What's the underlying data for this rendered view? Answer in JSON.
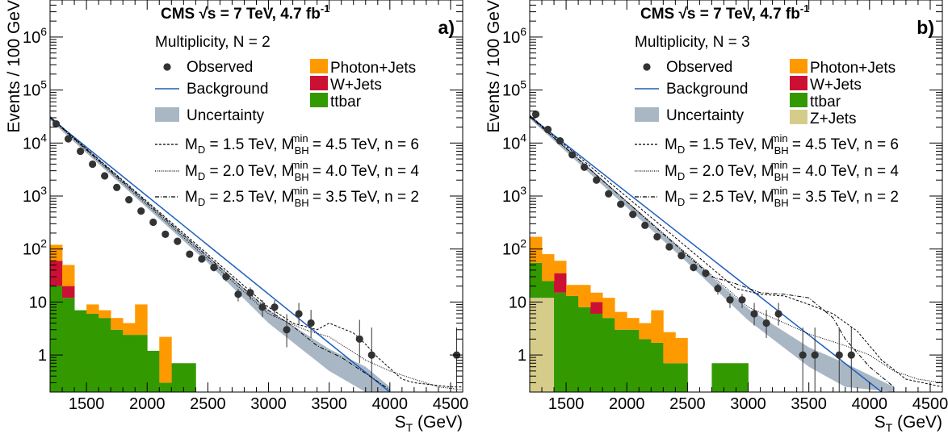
{
  "chart_data": [
    {
      "type": "bar",
      "panel_label": "a)",
      "experiment": "CMS",
      "energy_text": "√s = 7 TeV, 4.7 fb",
      "energy_sup": "-1",
      "multiplicity_text": "Multiplicity, N = 2",
      "ylabel": "Events / 100 GeV",
      "xlabel": "S",
      "xlabel_sub": "T",
      "xlabel_unit": " (GeV)",
      "yscale": "log",
      "xlim": [
        1200,
        4600
      ],
      "ylim": [
        0.2,
        5000000
      ],
      "xticks": [
        1500,
        2000,
        2500,
        3000,
        3500,
        4000,
        4500
      ],
      "yticks": [
        {
          "v": 1,
          "base": "1",
          "exp": ""
        },
        {
          "v": 10,
          "base": "10",
          "exp": ""
        },
        {
          "v": 100,
          "base": "10",
          "exp": "2"
        },
        {
          "v": 1000,
          "base": "10",
          "exp": "3"
        },
        {
          "v": 10000,
          "base": "10",
          "exp": "4"
        },
        {
          "v": 100000,
          "base": "10",
          "exp": "5"
        },
        {
          "v": 1000000,
          "base": "10",
          "exp": "6"
        }
      ],
      "legend": {
        "left": [
          {
            "kind": "marker",
            "label": "Observed"
          },
          {
            "kind": "line",
            "label": "Background"
          },
          {
            "kind": "band",
            "label": "Uncertainty"
          }
        ],
        "right": [
          {
            "color": "#ff9900",
            "label": "Photon+Jets"
          },
          {
            "color": "#cc1033",
            "label": "W+Jets"
          },
          {
            "color": "#339900",
            "label": "ttbar"
          }
        ],
        "signals": [
          {
            "dash": "3,2",
            "md": "1.5",
            "mbh": "4.5",
            "n": "6"
          },
          {
            "dash": "1,1.4",
            "md": "2.0",
            "mbh": "4.0",
            "n": "4"
          },
          {
            "dash": "5,2,1,2",
            "md": "2.5",
            "mbh": "3.5",
            "n": "2"
          }
        ],
        "md_label": "M",
        "md_sub": "D",
        "mbh_label": "M",
        "mbh_sub": "BH",
        "mbh_sup": "min",
        "unit": "TeV",
        "n_label": "n"
      },
      "stack": {
        "bin_width": 100,
        "bin_start": 1200,
        "series": [
          {
            "name": "ttbar",
            "color": "#339900",
            "values": [
              20,
              12,
              7,
              6,
              5,
              3,
              2.4,
              2.4,
              1.2,
              0.3,
              0.7,
              0.7
            ]
          },
          {
            "name": "W+Jets",
            "color": "#cc1033",
            "values": [
              40,
              8,
              0,
              0,
              0,
              0,
              0,
              0,
              0,
              0,
              0,
              0
            ]
          },
          {
            "name": "Photon+Jets",
            "color": "#ff9900",
            "values": [
              60,
              30,
              0,
              3,
              2,
              2,
              1.6,
              6.6,
              0,
              1.9,
              0,
              0
            ]
          }
        ]
      },
      "background": {
        "x": [
          1200,
          4000
        ],
        "y": [
          30000,
          0.2
        ]
      },
      "uncertainty_band": [
        {
          "x": 1200,
          "lo": 27000,
          "hi": 33000
        },
        {
          "x": 2500,
          "lo": 55,
          "hi": 75
        },
        {
          "x": 3000,
          "lo": 4,
          "hi": 7
        },
        {
          "x": 3500,
          "lo": 0.5,
          "hi": 1.3
        },
        {
          "x": 3800,
          "lo": 0.2,
          "hi": 0.6
        },
        {
          "x": 4000,
          "lo": 0.2,
          "hi": 0.25
        }
      ],
      "signals_data": [
        {
          "x": [
            1200,
            3000,
            3200,
            3400,
            3500,
            3700,
            3800,
            3900,
            4100,
            4200,
            4500,
            4600
          ],
          "y": [
            31000,
            8,
            4,
            3,
            4,
            2.6,
            1.6,
            0.9,
            0.35,
            0.3,
            0.25,
            0.25
          ]
        },
        {
          "x": [
            1200,
            3000,
            3300,
            3500,
            3800,
            4000,
            4200,
            4400,
            4600
          ],
          "y": [
            30000,
            6,
            3,
            2.2,
            0.8,
            0.5,
            0.35,
            0.25,
            0.22
          ]
        },
        {
          "x": [
            1200,
            3000,
            3200,
            3400,
            3600,
            3800,
            4000
          ],
          "y": [
            30500,
            7,
            3.5,
            1.5,
            0.9,
            0.45,
            0.22
          ]
        }
      ],
      "observed": [
        {
          "x": 1250,
          "y": 23000,
          "elo": 150,
          "ehi": 150
        },
        {
          "x": 1350,
          "y": 12000,
          "elo": 110,
          "ehi": 110
        },
        {
          "x": 1450,
          "y": 7000,
          "elo": 85,
          "ehi": 85
        },
        {
          "x": 1550,
          "y": 4000,
          "elo": 65,
          "ehi": 65
        },
        {
          "x": 1650,
          "y": 2400,
          "elo": 50,
          "ehi": 50
        },
        {
          "x": 1750,
          "y": 1450,
          "elo": 40,
          "ehi": 40
        },
        {
          "x": 1850,
          "y": 850,
          "elo": 30,
          "ehi": 30
        },
        {
          "x": 1950,
          "y": 520,
          "elo": 23,
          "ehi": 23
        },
        {
          "x": 2050,
          "y": 320,
          "elo": 18,
          "ehi": 18
        },
        {
          "x": 2150,
          "y": 190,
          "elo": 14,
          "ehi": 14
        },
        {
          "x": 2250,
          "y": 140,
          "elo": 12,
          "ehi": 12
        },
        {
          "x": 2350,
          "y": 80,
          "elo": 9,
          "ehi": 9
        },
        {
          "x": 2450,
          "y": 65,
          "elo": 8,
          "ehi": 8
        },
        {
          "x": 2550,
          "y": 45,
          "elo": 7,
          "ehi": 7
        },
        {
          "x": 2650,
          "y": 30,
          "elo": 5.5,
          "ehi": 5.5
        },
        {
          "x": 2750,
          "y": 14,
          "elo": 3.7,
          "ehi": 3.7
        },
        {
          "x": 2850,
          "y": 15,
          "elo": 3.9,
          "ehi": 3.9
        },
        {
          "x": 2950,
          "y": 8,
          "elo": 2.8,
          "ehi": 2.8
        },
        {
          "x": 3050,
          "y": 8,
          "elo": 2.8,
          "ehi": 2.8
        },
        {
          "x": 3150,
          "y": 3,
          "elo": 1.6,
          "ehi": 2.9
        },
        {
          "x": 3250,
          "y": 6,
          "elo": 2.4,
          "ehi": 3.6
        },
        {
          "x": 3350,
          "y": 4,
          "elo": 1.9,
          "ehi": 3.1
        },
        {
          "x": 3750,
          "y": 2,
          "elo": 1.3,
          "ehi": 2.6
        },
        {
          "x": 3850,
          "y": 1,
          "elo": 0.8,
          "ehi": 2.3
        },
        {
          "x": 4550,
          "y": 1,
          "elo": 0.8,
          "ehi": 2.3
        }
      ]
    },
    {
      "type": "bar",
      "panel_label": "b)",
      "experiment": "CMS",
      "energy_text": "√s = 7 TeV, 4.7 fb",
      "energy_sup": "-1",
      "multiplicity_text": "Multiplicity, N = 3",
      "ylabel": "Events / 100 GeV",
      "xlabel": "S",
      "xlabel_sub": "T",
      "xlabel_unit": " (GeV)",
      "yscale": "log",
      "xlim": [
        1200,
        4600
      ],
      "ylim": [
        0.2,
        5000000
      ],
      "xticks": [
        1500,
        2000,
        2500,
        3000,
        3500,
        4000,
        4500
      ],
      "yticks": [
        {
          "v": 1,
          "base": "1",
          "exp": ""
        },
        {
          "v": 10,
          "base": "10",
          "exp": ""
        },
        {
          "v": 100,
          "base": "10",
          "exp": "2"
        },
        {
          "v": 1000,
          "base": "10",
          "exp": "3"
        },
        {
          "v": 10000,
          "base": "10",
          "exp": "4"
        },
        {
          "v": 100000,
          "base": "10",
          "exp": "5"
        },
        {
          "v": 1000000,
          "base": "10",
          "exp": "6"
        }
      ],
      "legend": {
        "left": [
          {
            "kind": "marker",
            "label": "Observed"
          },
          {
            "kind": "line",
            "label": "Background"
          },
          {
            "kind": "band",
            "label": "Uncertainty"
          }
        ],
        "right": [
          {
            "color": "#ff9900",
            "label": "Photon+Jets"
          },
          {
            "color": "#cc1033",
            "label": "W+Jets"
          },
          {
            "color": "#339900",
            "label": "ttbar"
          },
          {
            "color": "#d6cc8a",
            "label": "Z+Jets"
          }
        ],
        "signals": [
          {
            "dash": "3,2",
            "md": "1.5",
            "mbh": "4.5",
            "n": "6"
          },
          {
            "dash": "1,1.4",
            "md": "2.0",
            "mbh": "4.0",
            "n": "4"
          },
          {
            "dash": "5,2,1,2",
            "md": "2.5",
            "mbh": "3.5",
            "n": "2"
          }
        ],
        "md_label": "M",
        "md_sub": "D",
        "mbh_label": "M",
        "mbh_sub": "BH",
        "mbh_sup": "min",
        "unit": "TeV",
        "n_label": "n"
      },
      "stack": {
        "bin_width": 100,
        "bin_start": 1200,
        "series": [
          {
            "name": "Z+Jets",
            "color": "#d6cc8a",
            "values": [
              12,
              12,
              0,
              0,
              0,
              0,
              0,
              0,
              0,
              0,
              0,
              0,
              0,
              0,
              0,
              0,
              0,
              0
            ]
          },
          {
            "name": "ttbar",
            "color": "#339900",
            "values": [
              43,
              13,
              15,
              13,
              8,
              6,
              5,
              3,
              3,
              2,
              1.7,
              0.7,
              0.7,
              0,
              0,
              0.7,
              0.7,
              0.7
            ]
          },
          {
            "name": "W+Jets",
            "color": "#cc1033",
            "values": [
              0,
              0,
              20,
              0,
              0,
              4,
              0,
              0,
              0,
              0,
              0,
              0,
              0,
              0,
              0,
              0,
              0,
              0
            ]
          },
          {
            "name": "Photon+Jets",
            "color": "#ff9900",
            "values": [
              115,
              55,
              25,
              8,
              13,
              5,
              7,
              3.5,
              2,
              2,
              5.3,
              2,
              1.4,
              0,
              0,
              0,
              0,
              0
            ]
          }
        ]
      },
      "background": {
        "x": [
          1200,
          4100
        ],
        "y": [
          32000,
          0.2
        ]
      },
      "uncertainty_band": [
        {
          "x": 1200,
          "lo": 29000,
          "hi": 35000
        },
        {
          "x": 2500,
          "lo": 55,
          "hi": 75
        },
        {
          "x": 3000,
          "lo": 4.5,
          "hi": 7.5
        },
        {
          "x": 3500,
          "lo": 0.6,
          "hi": 1.4
        },
        {
          "x": 3800,
          "lo": 0.25,
          "hi": 0.7
        },
        {
          "x": 4200,
          "lo": 0.2,
          "hi": 0.25
        }
      ],
      "signals_data": [
        {
          "x": [
            1200,
            2900,
            3100,
            3300,
            3500,
            3700,
            3900,
            4100,
            4300,
            4500,
            4600
          ],
          "y": [
            33000,
            18,
            14,
            13,
            9,
            6,
            2.8,
            0.8,
            0.35,
            0.28,
            0.25
          ]
        },
        {
          "x": [
            1200,
            3000,
            3300,
            3500,
            3800,
            4000,
            4200,
            4400,
            4600
          ],
          "y": [
            31000,
            8,
            4,
            2.5,
            1.5,
            1.0,
            0.5,
            0.35,
            0.3
          ]
        },
        {
          "x": [
            1200,
            2700,
            2900,
            3100,
            3300,
            3500,
            3700,
            3800,
            4000,
            4200
          ],
          "y": [
            32000,
            30,
            22,
            15,
            14,
            12,
            5,
            2,
            0.6,
            0.25
          ]
        }
      ],
      "observed": [
        {
          "x": 1250,
          "y": 35000,
          "elo": 190,
          "ehi": 190
        },
        {
          "x": 1350,
          "y": 18000,
          "elo": 135,
          "ehi": 135
        },
        {
          "x": 1450,
          "y": 11000,
          "elo": 105,
          "ehi": 105
        },
        {
          "x": 1550,
          "y": 6000,
          "elo": 78,
          "ehi": 78
        },
        {
          "x": 1650,
          "y": 3500,
          "elo": 60,
          "ehi": 60
        },
        {
          "x": 1750,
          "y": 2000,
          "elo": 45,
          "ehi": 45
        },
        {
          "x": 1850,
          "y": 1100,
          "elo": 33,
          "ehi": 33
        },
        {
          "x": 1950,
          "y": 700,
          "elo": 26,
          "ehi": 26
        },
        {
          "x": 2050,
          "y": 450,
          "elo": 21,
          "ehi": 21
        },
        {
          "x": 2150,
          "y": 280,
          "elo": 17,
          "ehi": 17
        },
        {
          "x": 2250,
          "y": 170,
          "elo": 13,
          "ehi": 13
        },
        {
          "x": 2350,
          "y": 110,
          "elo": 10,
          "ehi": 10
        },
        {
          "x": 2450,
          "y": 75,
          "elo": 9,
          "ehi": 9
        },
        {
          "x": 2550,
          "y": 45,
          "elo": 7,
          "ehi": 7
        },
        {
          "x": 2650,
          "y": 35,
          "elo": 6,
          "ehi": 6
        },
        {
          "x": 2750,
          "y": 18,
          "elo": 4.2,
          "ehi": 4.2
        },
        {
          "x": 2850,
          "y": 11,
          "elo": 3.3,
          "ehi": 3.3
        },
        {
          "x": 2950,
          "y": 11,
          "elo": 3.3,
          "ehi": 3.3
        },
        {
          "x": 3050,
          "y": 6,
          "elo": 2.4,
          "ehi": 3.6
        },
        {
          "x": 3150,
          "y": 4,
          "elo": 1.9,
          "ehi": 3.1
        },
        {
          "x": 3250,
          "y": 6,
          "elo": 2.4,
          "ehi": 3.6
        },
        {
          "x": 3450,
          "y": 1,
          "elo": 0.8,
          "ehi": 2.3
        },
        {
          "x": 3550,
          "y": 1,
          "elo": 0.8,
          "ehi": 2.3
        },
        {
          "x": 3750,
          "y": 1,
          "elo": 0.8,
          "ehi": 2.3
        },
        {
          "x": 3850,
          "y": 1,
          "elo": 0.8,
          "ehi": 2.3
        }
      ]
    }
  ]
}
